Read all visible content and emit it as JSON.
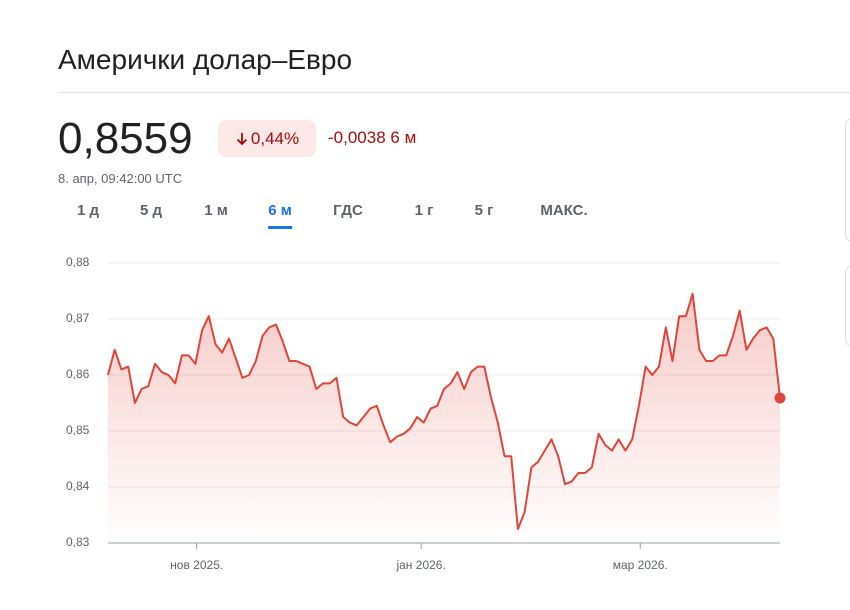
{
  "header": {
    "title": "Амерички долар–Евро",
    "price": "0,8559",
    "change_percent": "0,44%",
    "change": "-0,0038",
    "change_period": "6 м",
    "timestamp": "8. апр, 09:42:00 UTC"
  },
  "tabs": [
    "1 д",
    "5 д",
    "1 м",
    "6 м",
    "ГДС",
    "1 г",
    "5 г",
    "МАКС."
  ],
  "active_tab": 3,
  "chart_data": {
    "type": "line",
    "color": "#e0453a",
    "grid": true,
    "values": [
      0.86,
      0.8645,
      0.861,
      0.8615,
      0.855,
      0.8575,
      0.858,
      0.862,
      0.8605,
      0.86,
      0.8585,
      0.8635,
      0.8635,
      0.862,
      0.868,
      0.8705,
      0.8655,
      0.864,
      0.8665,
      0.863,
      0.8595,
      0.86,
      0.8625,
      0.867,
      0.8685,
      0.869,
      0.866,
      0.8625,
      0.8625,
      0.862,
      0.8615,
      0.8575,
      0.8585,
      0.8585,
      0.8595,
      0.8525,
      0.8515,
      0.851,
      0.8525,
      0.854,
      0.8545,
      0.851,
      0.848,
      0.849,
      0.8495,
      0.8505,
      0.8525,
      0.8515,
      0.854,
      0.8545,
      0.8575,
      0.8585,
      0.8605,
      0.8575,
      0.8605,
      0.8615,
      0.8615,
      0.856,
      0.8515,
      0.8455,
      0.8455,
      0.8325,
      0.8355,
      0.8435,
      0.8445,
      0.8465,
      0.8485,
      0.8455,
      0.8405,
      0.841,
      0.8425,
      0.8425,
      0.8435,
      0.8495,
      0.8475,
      0.8465,
      0.8485,
      0.8465,
      0.8485,
      0.8545,
      0.8615,
      0.86,
      0.8615,
      0.8685,
      0.8625,
      0.8705,
      0.8705,
      0.8745,
      0.8645,
      0.8625,
      0.8625,
      0.8635,
      0.8635,
      0.867,
      0.8715,
      0.8645,
      0.8665,
      0.868,
      0.8685,
      0.8665,
      0.8559
    ],
    "xlim": [
      0,
      100
    ],
    "xticks": [
      {
        "value": 13.2,
        "label": "нов 2025."
      },
      {
        "value": 46.6,
        "label": "јан 2026."
      },
      {
        "value": 79.2,
        "label": "мар 2026."
      }
    ],
    "ylim": [
      0.83,
      0.88
    ],
    "yticks": [
      {
        "value": 0.83,
        "label": "0,83"
      },
      {
        "value": 0.84,
        "label": "0,84"
      },
      {
        "value": 0.85,
        "label": "0,85"
      },
      {
        "value": 0.86,
        "label": "0,86"
      },
      {
        "value": 0.87,
        "label": "0,87"
      },
      {
        "value": 0.88,
        "label": "0,88"
      }
    ]
  }
}
